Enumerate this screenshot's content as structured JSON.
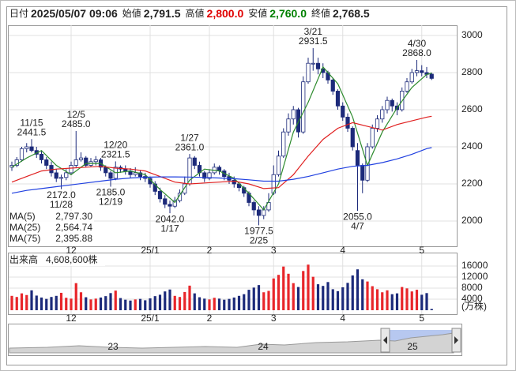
{
  "header": {
    "fields": [
      {
        "label": "日付",
        "value": "2025/05/07 09:06"
      },
      {
        "label": "始値",
        "value": "2,791.5"
      },
      {
        "label": "高値",
        "value": "2,800.0",
        "color": "#e00000"
      },
      {
        "label": "安値",
        "value": "2,760.0",
        "color": "#008000"
      },
      {
        "label": "終値",
        "value": "2,768.5"
      }
    ]
  },
  "chart_data": [
    {
      "type": "candlestick",
      "up_color": "#ffffff",
      "down_color": "#1c2a7a",
      "grid": true,
      "legend": "bottom-left",
      "ylim": [
        1864,
        3055
      ],
      "yticks": [
        2000,
        2200,
        2400,
        2600,
        2800,
        3000
      ],
      "xticks": [
        {
          "value": 12,
          "label": "12"
        },
        {
          "value": 28,
          "label": "25/1"
        },
        {
          "value": 40,
          "label": "2"
        },
        {
          "value": 53,
          "label": "3"
        },
        {
          "value": 67,
          "label": "4"
        },
        {
          "value": 83,
          "label": "5"
        }
      ],
      "ohlc": [
        [
          2290,
          2320,
          2270,
          2300
        ],
        [
          2300,
          2345,
          2290,
          2330
        ],
        [
          2330,
          2400,
          2320,
          2390
        ],
        [
          2390,
          2420,
          2370,
          2400
        ],
        [
          2400,
          2441.5,
          2370,
          2380
        ],
        [
          2380,
          2400,
          2340,
          2360
        ],
        [
          2360,
          2380,
          2310,
          2330
        ],
        [
          2330,
          2345,
          2280,
          2300
        ],
        [
          2300,
          2320,
          2240,
          2260
        ],
        [
          2260,
          2280,
          2210,
          2230
        ],
        [
          2230,
          2250,
          2172,
          2235
        ],
        [
          2235,
          2280,
          2220,
          2260
        ],
        [
          2260,
          2320,
          2250,
          2300
        ],
        [
          2300,
          2485,
          2290,
          2330
        ],
        [
          2330,
          2370,
          2320,
          2340
        ],
        [
          2340,
          2350,
          2290,
          2300
        ],
        [
          2300,
          2340,
          2290,
          2320
        ],
        [
          2320,
          2350,
          2300,
          2330
        ],
        [
          2330,
          2340,
          2270,
          2290
        ],
        [
          2290,
          2300,
          2240,
          2260
        ],
        [
          2260,
          2270,
          2185,
          2230
        ],
        [
          2230,
          2321.5,
          2220,
          2290
        ],
        [
          2290,
          2300,
          2260,
          2280
        ],
        [
          2280,
          2300,
          2250,
          2270
        ],
        [
          2270,
          2285,
          2230,
          2250
        ],
        [
          2250,
          2290,
          2240,
          2260
        ],
        [
          2260,
          2275,
          2220,
          2240
        ],
        [
          2240,
          2260,
          2210,
          2230
        ],
        [
          2230,
          2240,
          2180,
          2200
        ],
        [
          2200,
          2215,
          2140,
          2160
        ],
        [
          2160,
          2180,
          2100,
          2120
        ],
        [
          2120,
          2140,
          2070,
          2090
        ],
        [
          2090,
          2110,
          2042,
          2080
        ],
        [
          2080,
          2130,
          2070,
          2110
        ],
        [
          2110,
          2170,
          2100,
          2150
        ],
        [
          2150,
          2240,
          2140,
          2200
        ],
        [
          2200,
          2361,
          2190,
          2340
        ],
        [
          2340,
          2350,
          2280,
          2300
        ],
        [
          2300,
          2320,
          2240,
          2260
        ],
        [
          2260,
          2270,
          2210,
          2230
        ],
        [
          2230,
          2280,
          2220,
          2260
        ],
        [
          2260,
          2310,
          2250,
          2290
        ],
        [
          2290,
          2300,
          2250,
          2270
        ],
        [
          2270,
          2280,
          2220,
          2240
        ],
        [
          2240,
          2260,
          2200,
          2220
        ],
        [
          2220,
          2240,
          2180,
          2200
        ],
        [
          2200,
          2210,
          2160,
          2180
        ],
        [
          2180,
          2190,
          2130,
          2150
        ],
        [
          2150,
          2160,
          2080,
          2100
        ],
        [
          2100,
          2110,
          2030,
          2060
        ],
        [
          2060,
          2080,
          1977.5,
          2030
        ],
        [
          2030,
          2080,
          2010,
          2060
        ],
        [
          2060,
          2150,
          2050,
          2100
        ],
        [
          2150,
          2300,
          2140,
          2250
        ],
        [
          2250,
          2380,
          2240,
          2350
        ],
        [
          2350,
          2500,
          2340,
          2480
        ],
        [
          2480,
          2580,
          2460,
          2550
        ],
        [
          2550,
          2620,
          2520,
          2600
        ],
        [
          2600,
          2610,
          2450,
          2480
        ],
        [
          2480,
          2780,
          2470,
          2750
        ],
        [
          2750,
          2880,
          2740,
          2850
        ],
        [
          2850,
          2931.5,
          2810,
          2850
        ],
        [
          2850,
          2880,
          2790,
          2820
        ],
        [
          2820,
          2850,
          2770,
          2800
        ],
        [
          2800,
          2810,
          2740,
          2760
        ],
        [
          2760,
          2770,
          2680,
          2700
        ],
        [
          2700,
          2710,
          2600,
          2620
        ],
        [
          2620,
          2640,
          2540,
          2560
        ],
        [
          2560,
          2580,
          2480,
          2500
        ],
        [
          2500,
          2510,
          2380,
          2400
        ],
        [
          2380,
          2420,
          2055,
          2300
        ],
        [
          2300,
          2310,
          2150,
          2220
        ],
        [
          2220,
          2420,
          2210,
          2400
        ],
        [
          2400,
          2520,
          2390,
          2500
        ],
        [
          2500,
          2570,
          2480,
          2550
        ],
        [
          2550,
          2620,
          2530,
          2600
        ],
        [
          2600,
          2670,
          2580,
          2650
        ],
        [
          2650,
          2660,
          2590,
          2620
        ],
        [
          2620,
          2640,
          2570,
          2600
        ],
        [
          2600,
          2720,
          2590,
          2700
        ],
        [
          2700,
          2770,
          2690,
          2750
        ],
        [
          2750,
          2820,
          2740,
          2800
        ],
        [
          2800,
          2868,
          2780,
          2810
        ],
        [
          2810,
          2840,
          2780,
          2800
        ],
        [
          2800,
          2830,
          2770,
          2790
        ],
        [
          2791.5,
          2800,
          2760,
          2768.5
        ]
      ],
      "annotations": [
        {
          "date": "11/15",
          "price": "2441.5",
          "kind": "high"
        },
        {
          "date": "11/28",
          "price": "2172.0",
          "kind": "low"
        },
        {
          "date": "12/5",
          "price": "2485.0",
          "kind": "high"
        },
        {
          "date": "12/19",
          "price": "2185.0",
          "kind": "low"
        },
        {
          "date": "12/20",
          "price": "2321.5",
          "kind": "high"
        },
        {
          "date": "1/17",
          "price": "2042.0",
          "kind": "low"
        },
        {
          "date": "1/27",
          "price": "2361.0",
          "kind": "high"
        },
        {
          "date": "2/25",
          "price": "1977.5",
          "kind": "low"
        },
        {
          "date": "3/21",
          "price": "2931.5",
          "kind": "high"
        },
        {
          "date": "4/7",
          "price": "2055.0",
          "kind": "low"
        },
        {
          "date": "4/30",
          "price": "2868.0",
          "kind": "high"
        }
      ],
      "series": [
        {
          "name": "MA(5)",
          "color": "#2e8b2e",
          "value_label": "2,797.30",
          "x": [
            0,
            3,
            6,
            9,
            12,
            15,
            18,
            21,
            24,
            27,
            30,
            33,
            36,
            39,
            42,
            45,
            48,
            51,
            54,
            57,
            60,
            63,
            66,
            69,
            72,
            75,
            78,
            81,
            84,
            85
          ],
          "values": [
            2290,
            2340,
            2380,
            2300,
            2250,
            2310,
            2310,
            2260,
            2270,
            2250,
            2170,
            2100,
            2220,
            2280,
            2270,
            2230,
            2150,
            2060,
            2200,
            2480,
            2640,
            2830,
            2740,
            2560,
            2300,
            2480,
            2610,
            2720,
            2790,
            2797.3
          ]
        },
        {
          "name": "MA(25)",
          "color": "#e02020",
          "value_label": "2,564.74",
          "x": [
            0,
            3,
            6,
            9,
            12,
            15,
            18,
            21,
            24,
            27,
            30,
            33,
            36,
            39,
            42,
            45,
            48,
            51,
            54,
            57,
            60,
            63,
            66,
            69,
            72,
            75,
            78,
            81,
            84,
            85
          ],
          "values": [
            2210,
            2240,
            2270,
            2280,
            2285,
            2290,
            2295,
            2285,
            2280,
            2270,
            2240,
            2210,
            2200,
            2205,
            2210,
            2215,
            2200,
            2175,
            2180,
            2250,
            2350,
            2440,
            2500,
            2530,
            2510,
            2490,
            2520,
            2540,
            2560,
            2564.74
          ]
        },
        {
          "name": "MA(75)",
          "color": "#2040e0",
          "value_label": "2,395.88",
          "x": [
            0,
            3,
            6,
            9,
            12,
            15,
            18,
            21,
            24,
            27,
            30,
            33,
            36,
            39,
            42,
            45,
            48,
            51,
            54,
            57,
            60,
            63,
            66,
            69,
            72,
            75,
            78,
            81,
            84,
            85
          ],
          "values": [
            2150,
            2165,
            2175,
            2185,
            2195,
            2205,
            2215,
            2225,
            2232,
            2236,
            2238,
            2238,
            2237,
            2235,
            2232,
            2228,
            2222,
            2215,
            2215,
            2225,
            2240,
            2260,
            2280,
            2295,
            2300,
            2315,
            2335,
            2360,
            2390,
            2395.88
          ]
        }
      ]
    },
    {
      "type": "bar",
      "title": "出来高",
      "value_label": "4,608,600株",
      "unit": "(万株)",
      "up_color": "#e8262a",
      "down_color": "#1c2a7a",
      "ylim": [
        0,
        20000
      ],
      "yticks": [
        4000,
        8000,
        12000,
        16000
      ],
      "xticks": [
        {
          "value": 12,
          "label": "12"
        },
        {
          "value": 28,
          "label": "25/1"
        },
        {
          "value": 40,
          "label": "2"
        },
        {
          "value": 53,
          "label": "3"
        },
        {
          "value": 67,
          "label": "4"
        },
        {
          "value": 83,
          "label": "5"
        }
      ],
      "values": [
        5200,
        4800,
        6100,
        5500,
        7200,
        5300,
        4600,
        4100,
        4800,
        5200,
        6300,
        4500,
        4200,
        9800,
        6500,
        4700,
        3900,
        4200,
        4600,
        5100,
        6200,
        7100,
        4400,
        3800,
        3500,
        3900,
        4100,
        3600,
        4300,
        5100,
        5600,
        6800,
        7500,
        5200,
        4800,
        6600,
        8900,
        6100,
        4700,
        4200,
        3900,
        4500,
        4200,
        3800,
        4100,
        4600,
        5200,
        5800,
        7400,
        8200,
        9100,
        6500,
        7000,
        11500,
        12800,
        15800,
        13200,
        9800,
        8400,
        14200,
        16500,
        12100,
        9400,
        8800,
        10200,
        7600,
        6900,
        8300,
        9900,
        12600,
        14800,
        11200,
        10400,
        8700,
        7600,
        6500,
        7200,
        5800,
        6100,
        8400,
        7900,
        6800,
        7400,
        5600,
        6200,
        461
      ]
    }
  ],
  "navigator": {
    "labels": [
      "23",
      "24",
      "25"
    ]
  }
}
